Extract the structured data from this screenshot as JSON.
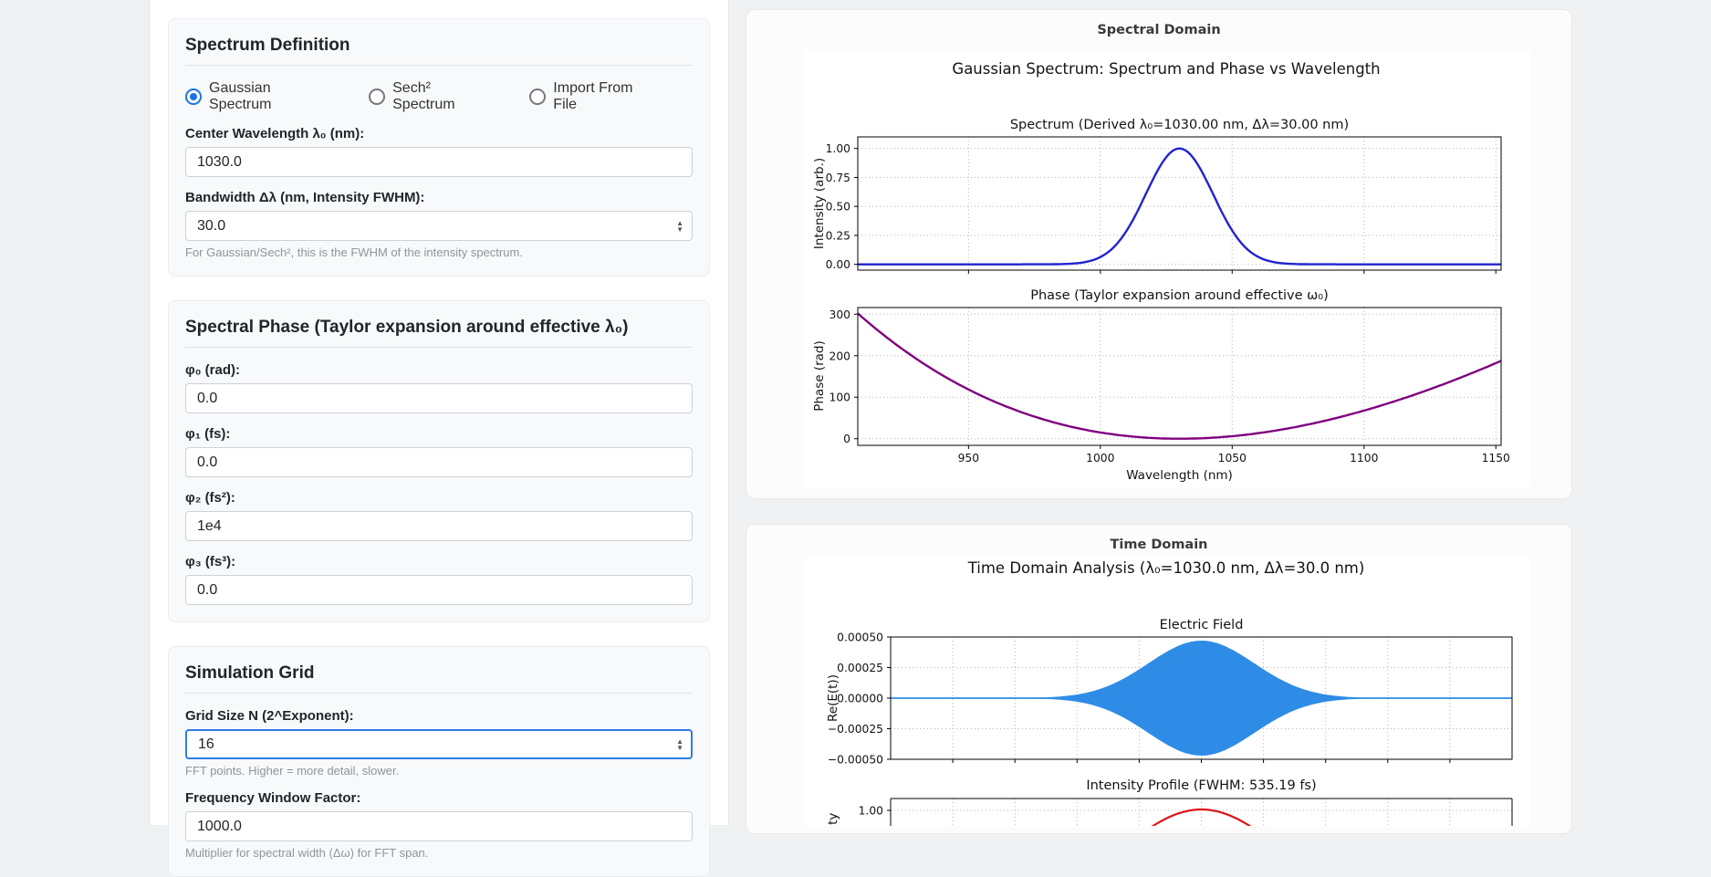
{
  "left_panel": {
    "spectrum_definition": {
      "title": "Spectrum Definition",
      "radios": [
        {
          "label": "Gaussian Spectrum",
          "selected": true
        },
        {
          "label": "Sech² Spectrum",
          "selected": false
        },
        {
          "label": "Import From File",
          "selected": false
        }
      ],
      "center_wavelength": {
        "label": "Center Wavelength λ₀ (nm):",
        "value": "1030.0"
      },
      "bandwidth": {
        "label": "Bandwidth Δλ (nm, Intensity FWHM):",
        "value": "30.0",
        "help": "For Gaussian/Sech², this is the FWHM of the intensity spectrum."
      }
    },
    "spectral_phase": {
      "title": "Spectral Phase (Taylor expansion around effective λ₀)",
      "phi0": {
        "label": "φ₀ (rad):",
        "value": "0.0"
      },
      "phi1": {
        "label": "φ₁ (fs):",
        "value": "0.0"
      },
      "phi2": {
        "label": "φ₂ (fs²):",
        "value": "1e4"
      },
      "phi3": {
        "label": "φ₃ (fs³):",
        "value": "0.0"
      }
    },
    "simulation_grid": {
      "title": "Simulation Grid",
      "grid_size": {
        "label": "Grid Size N (2^Exponent):",
        "value": "16",
        "help": "FFT points. Higher = more detail, slower."
      },
      "freq_window": {
        "label": "Frequency Window Factor:",
        "value": "1000.0",
        "help": "Multiplier for spectral width (Δω) for FFT span."
      }
    }
  },
  "chart_data": [
    {
      "panel": "Spectral Domain",
      "type": "line",
      "figure_title": "Gaussian Spectrum: Spectrum and Phase vs Wavelength",
      "subplots": [
        {
          "title": "Spectrum (Derived λ₀=1030.00 nm, Δλ=30.00 nm)",
          "ylabel": "Intensity (arb.)",
          "yticks": [
            0,
            0.25,
            0.5,
            0.75,
            1.0
          ],
          "ytick_labels": [
            "0.00",
            "0.25",
            "0.50",
            "0.75",
            "1.00"
          ],
          "ylim": [
            -0.05,
            1.1
          ],
          "xlim": [
            908,
            1152
          ],
          "xticks": [
            950,
            1000,
            1050,
            1100,
            1150
          ],
          "grid": true,
          "series": [
            {
              "name": "spectrum",
              "kind": "gaussian",
              "center_nm": 1030,
              "fwhm_nm": 30,
              "peak": 1.0,
              "color": "#2323cf"
            }
          ]
        },
        {
          "title": "Phase (Taylor expansion around effective ω₀)",
          "ylabel": "Phase (rad)",
          "xlabel": "Wavelength (nm)",
          "yticks": [
            0,
            100,
            200,
            300
          ],
          "ytick_labels": [
            "0",
            "100",
            "200",
            "300"
          ],
          "ylim": [
            -16,
            316
          ],
          "xlim": [
            908,
            1152
          ],
          "xticks": [
            950,
            1000,
            1050,
            1100,
            1150
          ],
          "xtick_labels": [
            "950",
            "1000",
            "1050",
            "1100",
            "1150"
          ],
          "grid": true,
          "series": [
            {
              "name": "phase",
              "kind": "gdd_parabola",
              "center_nm": 1030,
              "gdd_fs2": 10000,
              "color": "#800080"
            }
          ]
        }
      ]
    },
    {
      "panel": "Time Domain",
      "type": "line",
      "figure_title": "Time Domain Analysis (λ₀=1030.0 nm, Δλ=30.0 nm)",
      "subplots": [
        {
          "title": "Electric Field",
          "ylabel": "Re(E(t))",
          "ytick_labels": [
            "0.00050",
            "0.00025",
            "0.00000",
            "−0.00025",
            "−0.00050"
          ],
          "ylim": [
            -0.0005,
            0.0005
          ],
          "grid": true,
          "series": [
            {
              "name": "field",
              "kind": "field_envelope",
              "peak": 0.00047,
              "color": "#2e8ce6"
            }
          ]
        },
        {
          "title": "Intensity Profile (FWHM: 535.19 fs)",
          "ylabel": "Intensity",
          "fwhm_fs": 535.19,
          "ytick_labels": [
            "1.00"
          ],
          "grid": true,
          "series": [
            {
              "name": "intensity",
              "kind": "gaussian_peak",
              "peak": 1.0,
              "color": "#dc1414"
            }
          ]
        }
      ]
    }
  ]
}
